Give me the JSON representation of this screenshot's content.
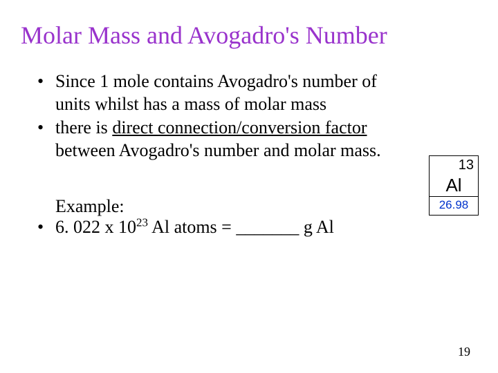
{
  "title": "Molar Mass and Avogadro's Number",
  "bullets": [
    {
      "text": "Since 1 mole contains Avogadro's number of units whilst has a mass of molar mass"
    },
    {
      "prefix": "there is ",
      "underlined": "direct connection/conversion factor",
      "suffix": " between Avogadro's number and molar mass."
    }
  ],
  "example": {
    "heading": "Example:",
    "coefficient": "6. 022 x 10",
    "exponent": "23",
    "middle_text": " Al atoms  =  _______  g Al"
  },
  "element": {
    "atomic_number": "13",
    "symbol": "Al",
    "mass": "26.98",
    "border_color": "#000000",
    "mass_color": "#0033cc"
  },
  "page_number": "19",
  "title_color": "#9933cc",
  "background_color": "#ffffff"
}
